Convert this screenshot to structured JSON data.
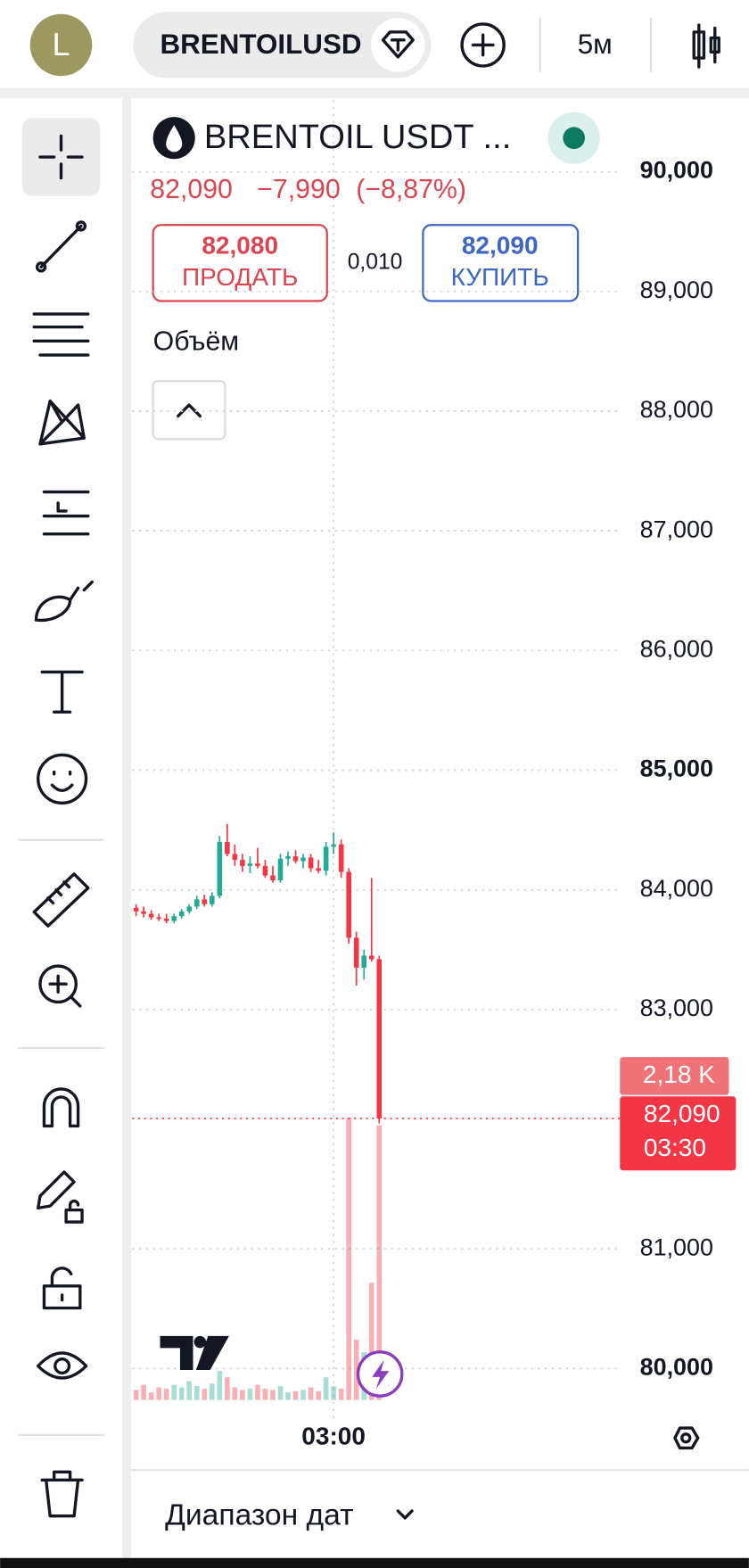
{
  "header": {
    "avatar": "L",
    "symbol": "BRENTOILUSDT",
    "interval": "5м"
  },
  "chart_data": {
    "type": "candlestick",
    "title": "BRENTOIL USDT ...",
    "last_price": {
      "value": 82.09,
      "label": "82,090"
    },
    "change": {
      "value": -7.99,
      "label": "−7,990"
    },
    "change_pct": {
      "value": -8.87,
      "label": "(−8,87%)"
    },
    "sell": {
      "value": 82.08,
      "label": "82,080"
    },
    "sell_label": "ПРОДАТЬ",
    "spread": {
      "value": 0.01,
      "label": "0,010"
    },
    "buy": {
      "value": 82.09,
      "label": "82,090"
    },
    "buy_label": "КУПИТЬ",
    "volume_title": "Объём",
    "countdown": "03:30",
    "categories": [
      null,
      null,
      null,
      null,
      null,
      null,
      null,
      null,
      null,
      null,
      null,
      null,
      null,
      null,
      null,
      null,
      null,
      null,
      null,
      null,
      null,
      null,
      null,
      null,
      null,
      null,
      "03:00",
      null,
      null,
      null,
      null,
      null,
      null
    ],
    "open": [
      83.85,
      83.82,
      83.8,
      83.77,
      83.76,
      83.74,
      83.78,
      83.82,
      83.86,
      83.92,
      83.88,
      83.95,
      84.4,
      84.3,
      84.25,
      84.2,
      84.22,
      84.2,
      84.12,
      84.08,
      84.26,
      84.28,
      84.24,
      84.27,
      84.18,
      84.16,
      84.36,
      84.38,
      84.15,
      83.6,
      83.35,
      83.45,
      83.42
    ],
    "high": [
      83.88,
      83.86,
      83.83,
      83.8,
      83.8,
      83.8,
      83.84,
      83.88,
      83.95,
      83.96,
      83.98,
      84.45,
      84.55,
      84.38,
      84.3,
      84.28,
      84.35,
      84.25,
      84.2,
      84.3,
      84.32,
      84.33,
      84.3,
      84.3,
      84.25,
      84.4,
      84.48,
      84.42,
      84.18,
      83.65,
      83.5,
      84.1,
      83.45
    ],
    "low": [
      83.78,
      83.77,
      83.75,
      83.74,
      83.72,
      83.72,
      83.76,
      83.8,
      83.84,
      83.86,
      83.86,
      83.93,
      84.28,
      84.2,
      84.15,
      84.14,
      84.18,
      84.1,
      84.06,
      84.06,
      84.2,
      84.22,
      84.18,
      84.15,
      84.14,
      84.12,
      84.3,
      84.1,
      83.55,
      83.2,
      83.25,
      83.4,
      82.05
    ],
    "close": [
      83.82,
      83.8,
      83.77,
      83.76,
      83.74,
      83.78,
      83.82,
      83.86,
      83.92,
      83.88,
      83.95,
      84.4,
      84.3,
      84.25,
      84.2,
      84.22,
      84.2,
      84.12,
      84.08,
      84.26,
      84.28,
      84.24,
      84.27,
      84.18,
      84.16,
      84.36,
      84.38,
      84.15,
      83.6,
      83.35,
      83.45,
      83.42,
      82.09
    ],
    "volume": {
      "values": [
        80,
        120,
        60,
        100,
        90,
        120,
        100,
        150,
        110,
        90,
        130,
        230,
        180,
        100,
        80,
        90,
        120,
        90,
        80,
        110,
        60,
        70,
        80,
        100,
        70,
        180,
        110,
        90,
        2240,
        480,
        380,
        930,
        2180
      ],
      "value_labels": [
        null,
        null,
        null,
        null,
        null,
        null,
        null,
        null,
        null,
        null,
        null,
        null,
        null,
        null,
        null,
        null,
        null,
        null,
        null,
        null,
        null,
        null,
        null,
        null,
        null,
        null,
        null,
        null,
        null,
        null,
        null,
        null,
        "2,18 K"
      ]
    },
    "up_color": "#22ab94",
    "down_color": "#f23645",
    "ylim": [
      79.57,
      90.6
    ],
    "yticks": [
      {
        "value": 90,
        "label": "90,000"
      },
      {
        "value": 89,
        "label": "89,000"
      },
      {
        "value": 88,
        "label": "88,000"
      },
      {
        "value": 87,
        "label": "87,000"
      },
      {
        "value": 86,
        "label": "86,000"
      },
      {
        "value": 85,
        "label": "85,000"
      },
      {
        "value": 84,
        "label": "84,000"
      },
      {
        "value": 83,
        "label": "83,000"
      },
      {
        "value": 81,
        "label": "81,000"
      },
      {
        "value": 80,
        "label": "80,000"
      }
    ],
    "grid": true
  },
  "footer": {
    "date_range": "Диапазон дат"
  }
}
